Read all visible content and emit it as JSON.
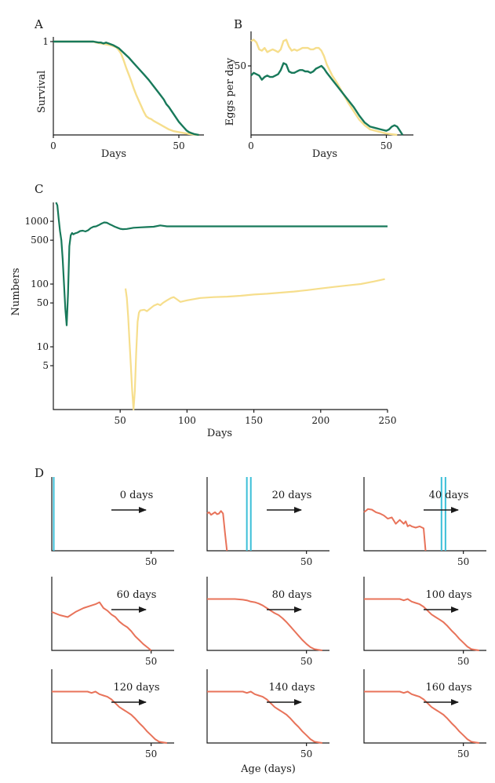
{
  "colors": {
    "green": "#18795a",
    "yellow": "#f6de8c",
    "orange": "#e8735a",
    "cyan": "#3cbfd8",
    "axis": "#1a1a1a"
  },
  "chart_data": [
    {
      "panel": "A",
      "type": "line",
      "xlabel": "Days",
      "ylabel": "Survival",
      "xlim": [
        0,
        60
      ],
      "ylim": [
        0,
        1
      ],
      "xticks": [
        0,
        50
      ],
      "yticks": [
        1
      ],
      "series": [
        {
          "color": "#f6de8c",
          "x": [
            0,
            10,
            14,
            16,
            17,
            19,
            21,
            23,
            24,
            25,
            26,
            27,
            28,
            29,
            30,
            31,
            32,
            33,
            34,
            35,
            36,
            37,
            38,
            39,
            40,
            42,
            44,
            46,
            48,
            50,
            52,
            54,
            56,
            57,
            58
          ],
          "y": [
            1,
            1,
            1,
            1,
            0.99,
            0.98,
            0.97,
            0.96,
            0.95,
            0.94,
            0.91,
            0.87,
            0.8,
            0.72,
            0.65,
            0.58,
            0.5,
            0.43,
            0.37,
            0.31,
            0.25,
            0.2,
            0.18,
            0.17,
            0.15,
            0.12,
            0.09,
            0.06,
            0.04,
            0.03,
            0.02,
            0.01,
            0.005,
            0.002,
            0.0
          ]
        },
        {
          "color": "#18795a",
          "x": [
            0,
            10,
            16,
            18,
            19,
            20,
            21,
            22,
            24,
            26,
            28,
            30,
            32,
            34,
            36,
            38,
            40,
            42,
            44,
            45,
            46,
            48,
            50,
            52,
            53,
            54,
            55,
            56,
            57,
            58
          ],
          "y": [
            1,
            1,
            1,
            0.99,
            0.99,
            0.98,
            0.99,
            0.98,
            0.96,
            0.93,
            0.88,
            0.83,
            0.77,
            0.71,
            0.65,
            0.59,
            0.52,
            0.45,
            0.38,
            0.33,
            0.3,
            0.22,
            0.14,
            0.08,
            0.05,
            0.03,
            0.02,
            0.01,
            0.005,
            0.0
          ]
        }
      ]
    },
    {
      "panel": "B",
      "type": "line",
      "xlabel": "Days",
      "ylabel": "Eggs per day",
      "xlim": [
        0,
        60
      ],
      "ylim": [
        0,
        75
      ],
      "xticks": [
        0,
        50
      ],
      "yticks": [
        50
      ],
      "series": [
        {
          "color": "#f6de8c",
          "x": [
            0,
            1,
            2,
            3,
            4,
            5,
            6,
            7,
            8,
            9,
            10,
            11,
            12,
            13,
            14,
            15,
            16,
            17,
            18,
            19,
            20,
            21,
            22,
            23,
            24,
            25,
            26,
            27,
            28,
            30,
            32,
            34,
            36,
            38,
            40,
            42,
            44,
            46,
            48,
            50,
            52,
            54
          ],
          "y": [
            68,
            69,
            67,
            62,
            61,
            63,
            60,
            61,
            62,
            61,
            60,
            62,
            68,
            69,
            64,
            61,
            62,
            61,
            62,
            63,
            63,
            63,
            62,
            62,
            63,
            63,
            61,
            57,
            51,
            43,
            37,
            30,
            23,
            17,
            11,
            7,
            4,
            3,
            2,
            1,
            0.5,
            0
          ]
        },
        {
          "color": "#18795a",
          "x": [
            0,
            1,
            2,
            3,
            4,
            5,
            6,
            7,
            8,
            9,
            10,
            11,
            12,
            13,
            14,
            15,
            16,
            17,
            18,
            19,
            20,
            21,
            22,
            23,
            24,
            25,
            26,
            27,
            28,
            30,
            32,
            34,
            36,
            38,
            40,
            42,
            44,
            46,
            48,
            50,
            51,
            52,
            53,
            54,
            55,
            56
          ],
          "y": [
            43,
            45,
            44,
            43,
            40,
            42,
            43,
            42,
            42,
            43,
            44,
            47,
            52,
            51,
            46,
            45,
            45,
            46,
            47,
            47,
            46,
            46,
            45,
            46,
            48,
            49,
            50,
            48,
            45,
            40,
            35,
            30,
            25,
            20,
            14,
            9,
            6,
            5,
            4,
            3,
            4,
            6,
            7,
            6,
            3,
            0
          ]
        }
      ]
    },
    {
      "panel": "C",
      "type": "line",
      "xlabel": "Days",
      "ylabel": "Numbers",
      "scale_y": "log",
      "xlim": [
        0,
        250
      ],
      "ylim": [
        1,
        2000
      ],
      "xticks": [
        50,
        100,
        150,
        200,
        250
      ],
      "yticks": [
        5,
        10,
        50,
        100,
        500,
        1000
      ],
      "series": [
        {
          "color": "#18795a",
          "x": [
            2,
            3,
            4,
            5,
            6,
            7,
            8,
            9,
            10,
            11,
            12,
            13,
            14,
            15,
            16,
            18,
            20,
            22,
            24,
            26,
            28,
            30,
            32,
            34,
            36,
            38,
            40,
            42,
            44,
            46,
            48,
            50,
            52,
            55,
            60,
            65,
            70,
            75,
            80,
            85,
            100,
            150,
            200,
            250
          ],
          "y": [
            2000,
            1800,
            1100,
            700,
            500,
            250,
            100,
            40,
            22,
            70,
            400,
            600,
            650,
            620,
            640,
            660,
            700,
            710,
            690,
            720,
            780,
            820,
            830,
            870,
            920,
            960,
            950,
            900,
            860,
            820,
            790,
            760,
            750,
            755,
            790,
            800,
            810,
            820,
            860,
            830,
            830,
            830,
            830,
            830
          ]
        },
        {
          "color": "#f6de8c",
          "x": [
            54,
            55,
            56,
            57,
            58,
            59,
            60,
            61,
            62,
            63,
            64,
            65,
            68,
            70,
            72,
            75,
            78,
            80,
            82,
            85,
            88,
            90,
            92,
            95,
            100,
            110,
            120,
            130,
            140,
            150,
            160,
            170,
            180,
            190,
            200,
            210,
            220,
            230,
            240,
            248
          ],
          "y": [
            85,
            60,
            30,
            12,
            5,
            2,
            1,
            2,
            8,
            25,
            35,
            38,
            39,
            37,
            40,
            45,
            48,
            46,
            50,
            55,
            60,
            62,
            58,
            52,
            55,
            60,
            62,
            63,
            65,
            68,
            70,
            73,
            76,
            80,
            85,
            90,
            95,
            100,
            110,
            120
          ]
        }
      ]
    },
    {
      "panel": "D",
      "type": "line",
      "xlabel": "Age (days)",
      "xticks": [
        50
      ],
      "xlim": [
        0,
        60
      ],
      "ylim": [
        0,
        1.1
      ],
      "panels": [
        {
          "label": "0 days",
          "lines": [
            1
          ],
          "x": [],
          "y": []
        },
        {
          "label": "20 days",
          "lines": [
            20,
            22
          ],
          "x": [
            0,
            1,
            2,
            3,
            4,
            5,
            6,
            7,
            8,
            9,
            10
          ],
          "y": [
            0.58,
            0.6,
            0.56,
            0.58,
            0.6,
            0.57,
            0.58,
            0.62,
            0.58,
            0.28,
            0.0
          ]
        },
        {
          "label": "40 days",
          "lines": [
            39,
            41
          ],
          "x": [
            0,
            2,
            4,
            6,
            8,
            10,
            12,
            14,
            16,
            18,
            20,
            21,
            22,
            23,
            24,
            26,
            28,
            30,
            31
          ],
          "y": [
            0.6,
            0.65,
            0.64,
            0.6,
            0.58,
            0.55,
            0.5,
            0.52,
            0.42,
            0.48,
            0.42,
            0.46,
            0.38,
            0.4,
            0.38,
            0.36,
            0.38,
            0.35,
            0.0
          ]
        },
        {
          "label": "60 days",
          "x": [
            0,
            4,
            8,
            12,
            16,
            20,
            22,
            24,
            26,
            28,
            30,
            32,
            34,
            36,
            38,
            40,
            42,
            44,
            46,
            48,
            50
          ],
          "y": [
            0.6,
            0.55,
            0.52,
            0.6,
            0.66,
            0.7,
            0.72,
            0.75,
            0.66,
            0.62,
            0.56,
            0.52,
            0.45,
            0.4,
            0.36,
            0.3,
            0.22,
            0.16,
            0.1,
            0.05,
            0.0
          ]
        },
        {
          "label": "80 days",
          "x": [
            0,
            10,
            14,
            18,
            20,
            22,
            24,
            26,
            28,
            30,
            32,
            34,
            36,
            38,
            40,
            42,
            44,
            46,
            48,
            50,
            52,
            54,
            56,
            58
          ],
          "y": [
            0.8,
            0.8,
            0.8,
            0.79,
            0.78,
            0.76,
            0.75,
            0.73,
            0.7,
            0.66,
            0.62,
            0.58,
            0.55,
            0.5,
            0.44,
            0.37,
            0.3,
            0.23,
            0.16,
            0.1,
            0.05,
            0.02,
            0.01,
            0.0
          ]
        },
        {
          "label": "100 days",
          "x": [
            0,
            14,
            18,
            20,
            22,
            24,
            26,
            28,
            30,
            32,
            34,
            36,
            38,
            40,
            42,
            44,
            46,
            48,
            50,
            52,
            54,
            56,
            58
          ],
          "y": [
            0.8,
            0.8,
            0.8,
            0.78,
            0.8,
            0.76,
            0.74,
            0.72,
            0.68,
            0.62,
            0.56,
            0.52,
            0.48,
            0.44,
            0.38,
            0.31,
            0.25,
            0.18,
            0.12,
            0.06,
            0.02,
            0.01,
            0.0
          ]
        },
        {
          "label": "120 days",
          "x": [
            0,
            14,
            18,
            20,
            22,
            24,
            26,
            28,
            30,
            32,
            34,
            36,
            38,
            40,
            42,
            44,
            46,
            48,
            50,
            52,
            54,
            56,
            58
          ],
          "y": [
            0.8,
            0.8,
            0.8,
            0.78,
            0.8,
            0.76,
            0.74,
            0.72,
            0.68,
            0.62,
            0.56,
            0.52,
            0.48,
            0.44,
            0.38,
            0.31,
            0.25,
            0.18,
            0.12,
            0.06,
            0.02,
            0.01,
            0.0
          ]
        },
        {
          "label": "140 days",
          "x": [
            0,
            14,
            18,
            20,
            22,
            24,
            26,
            28,
            30,
            32,
            34,
            36,
            38,
            40,
            42,
            44,
            46,
            48,
            50,
            52,
            54,
            56,
            58
          ],
          "y": [
            0.8,
            0.8,
            0.8,
            0.78,
            0.8,
            0.76,
            0.74,
            0.72,
            0.68,
            0.62,
            0.56,
            0.52,
            0.48,
            0.44,
            0.38,
            0.31,
            0.25,
            0.18,
            0.12,
            0.06,
            0.02,
            0.01,
            0.0
          ]
        },
        {
          "label": "160 days",
          "x": [
            0,
            14,
            18,
            20,
            22,
            24,
            26,
            28,
            30,
            32,
            34,
            36,
            38,
            40,
            42,
            44,
            46,
            48,
            50,
            52,
            54,
            56,
            58
          ],
          "y": [
            0.8,
            0.8,
            0.8,
            0.78,
            0.8,
            0.76,
            0.74,
            0.72,
            0.68,
            0.62,
            0.56,
            0.52,
            0.48,
            0.44,
            0.38,
            0.31,
            0.25,
            0.18,
            0.12,
            0.06,
            0.02,
            0.01,
            0.0
          ]
        }
      ]
    }
  ]
}
